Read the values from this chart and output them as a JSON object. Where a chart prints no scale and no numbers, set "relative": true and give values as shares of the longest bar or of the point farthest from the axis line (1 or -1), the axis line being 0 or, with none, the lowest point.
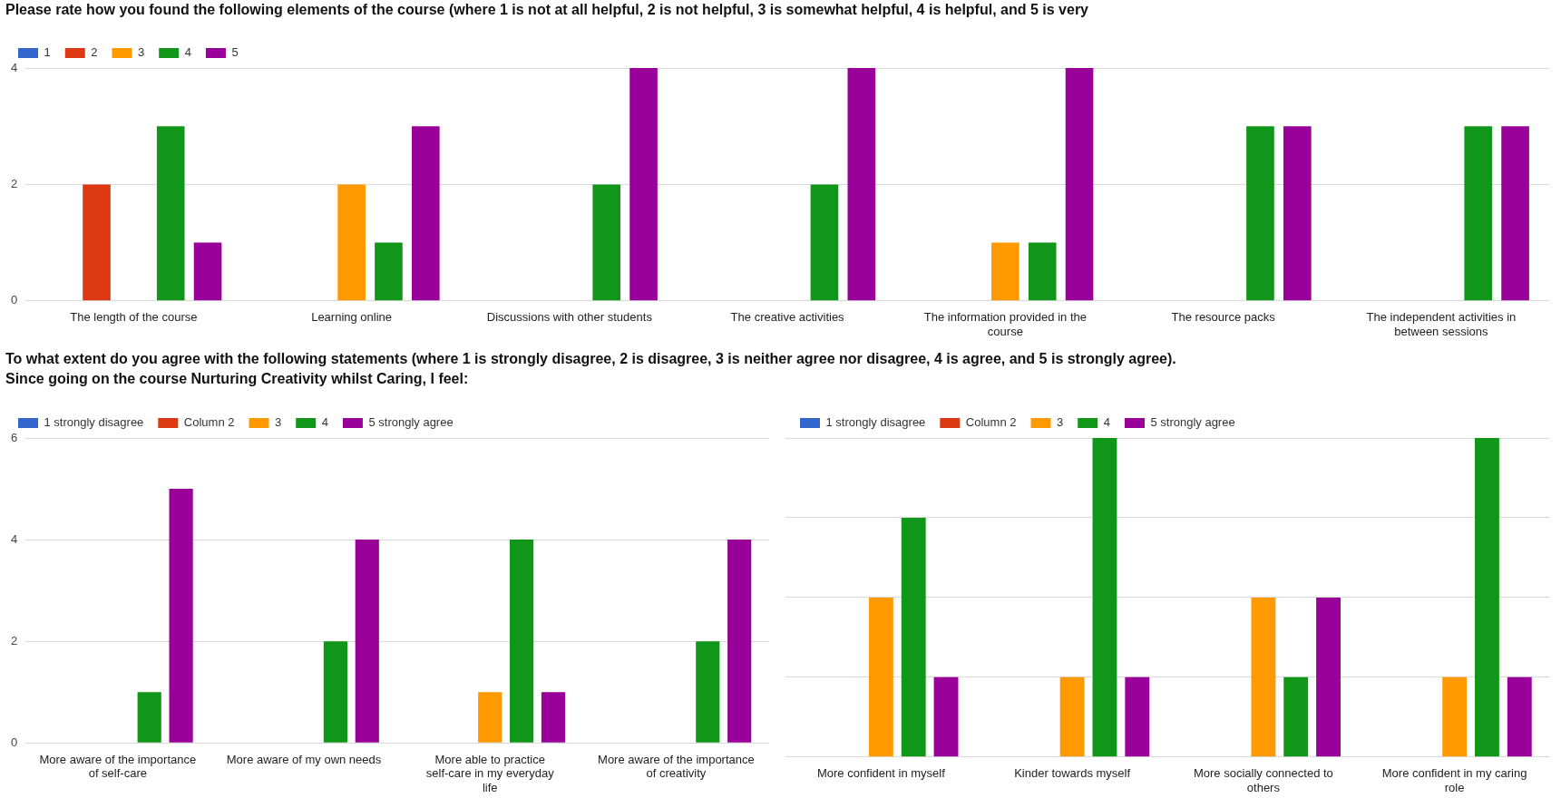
{
  "chart_data": [
    {
      "type": "bar",
      "title": "Please rate how you found the following elements of the course (where 1 is not at all helpful, 2 is not helpful, 3 is somewhat helpful, 4 is helpful, and 5 is very",
      "categories": [
        "The length of the course",
        "Learning online",
        "Discussions with other students",
        "The creative activities",
        "The information provided in the course",
        "The resource packs",
        "The independent activities in between sessions"
      ],
      "series": [
        {
          "name": "1",
          "color": "#3366cc",
          "values": [
            0,
            0,
            0,
            0,
            0,
            0,
            0
          ]
        },
        {
          "name": "2",
          "color": "#dc3912",
          "values": [
            2,
            0,
            0,
            0,
            0,
            0,
            0
          ]
        },
        {
          "name": "3",
          "color": "#ff9900",
          "values": [
            0,
            2,
            0,
            0,
            1,
            0,
            0
          ]
        },
        {
          "name": "4",
          "color": "#109618",
          "values": [
            3,
            1,
            2,
            2,
            1,
            3,
            3
          ]
        },
        {
          "name": "5",
          "color": "#990099",
          "values": [
            1,
            3,
            4,
            4,
            4,
            3,
            3
          ]
        }
      ],
      "ylim": [
        0,
        4
      ],
      "yticks": [
        0,
        2,
        4
      ],
      "grid": "y",
      "legend": "top left"
    },
    {
      "type": "bar",
      "title": "To what extent do you agree with the following statements (where 1 is strongly disagree, 2 is disagree, 3 is neither agree nor disagree, 4 is agree, and 5 is strongly agree).\nSince going on the course Nurturing Creativity whilst Caring, I feel:",
      "categories": [
        "More aware of the importance of self-care",
        "More aware of my own needs",
        "More able to practice self-care in my everyday life",
        "More aware of the importance of creativity"
      ],
      "series": [
        {
          "name": "1 strongly disagree",
          "color": "#3366cc",
          "values": [
            0,
            0,
            0,
            0
          ]
        },
        {
          "name": "Column 2",
          "color": "#dc3912",
          "values": [
            0,
            0,
            0,
            0
          ]
        },
        {
          "name": "3",
          "color": "#ff9900",
          "values": [
            0,
            0,
            1,
            0
          ]
        },
        {
          "name": "4",
          "color": "#109618",
          "values": [
            1,
            2,
            4,
            2
          ]
        },
        {
          "name": "5 strongly agree",
          "color": "#990099",
          "values": [
            5,
            4,
            1,
            4
          ]
        }
      ],
      "ylim": [
        0,
        6
      ],
      "yticks": [
        0,
        2,
        4,
        6
      ],
      "grid": "y",
      "legend": "top left"
    },
    {
      "type": "bar",
      "categories": [
        "More confident in myself",
        "Kinder towards myself",
        "More socially connected to others",
        "More confident in my caring role"
      ],
      "series": [
        {
          "name": "1 strongly disagree",
          "color": "#3366cc",
          "values": [
            0,
            0,
            0,
            0
          ]
        },
        {
          "name": "Column 2",
          "color": "#dc3912",
          "values": [
            0,
            0,
            0,
            0
          ]
        },
        {
          "name": "3",
          "color": "#ff9900",
          "values": [
            0.5,
            0.25,
            0.5,
            0.25
          ]
        },
        {
          "name": "4",
          "color": "#109618",
          "values": [
            0.75,
            1,
            0.25,
            1
          ]
        },
        {
          "name": "5 strongly agree",
          "color": "#990099",
          "values": [
            0.25,
            0.25,
            0.5,
            0.25
          ]
        }
      ],
      "relative": true,
      "grid": "y",
      "legend": "top left"
    }
  ]
}
